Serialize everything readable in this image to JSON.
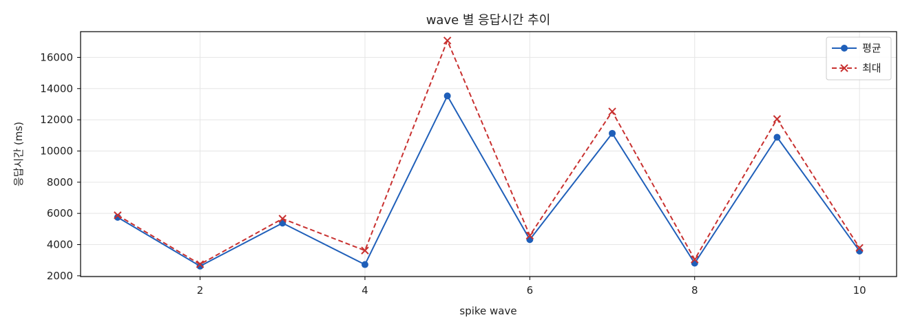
{
  "chart_data": {
    "type": "line",
    "title": "wave 별 응답시간 추이",
    "xlabel": "spike wave",
    "ylabel": "응답시간 (ms)",
    "x": [
      1,
      2,
      3,
      4,
      5,
      6,
      7,
      8,
      9,
      10
    ],
    "xlim": [
      0.55,
      10.45
    ],
    "ylim": [
      1950,
      17650
    ],
    "xticks": [
      2,
      4,
      6,
      8,
      10
    ],
    "yticks": [
      2000,
      4000,
      6000,
      8000,
      10000,
      12000,
      14000,
      16000
    ],
    "grid": true,
    "legend_position": "top-right",
    "series": [
      {
        "name": "평균",
        "values": [
          5750,
          2620,
          5380,
          2720,
          13530,
          4320,
          11130,
          2810,
          10880,
          3590
        ],
        "color": "#1f5fb9",
        "line_style": "solid",
        "marker": "circle"
      },
      {
        "name": "최대",
        "values": [
          5880,
          2740,
          5660,
          3620,
          17080,
          4580,
          12530,
          3050,
          12050,
          3790
        ],
        "color": "#c8302f",
        "line_style": "dashed",
        "marker": "x"
      }
    ]
  }
}
